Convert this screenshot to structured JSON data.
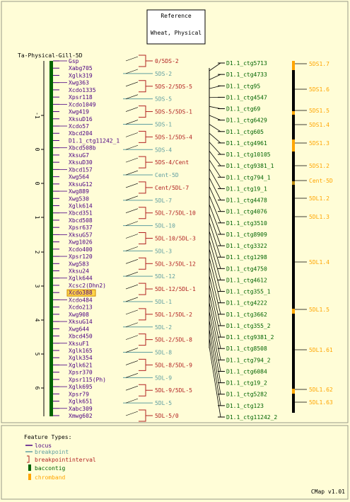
{
  "title_box": {
    "line1": "Reference",
    "line2": "Wheat, Physical"
  },
  "map_name": "Ta-Physical-Gill-5D",
  "axis_ticks": [
    "-1",
    "0",
    "0",
    "1",
    "2",
    "3",
    "4",
    "5",
    "6"
  ],
  "loci": [
    "Gsp",
    "Xabg705",
    "Xglk319",
    "Xwg363",
    "Xcdo1335",
    "Xpsr118",
    "Xcdo1049",
    "Xwg419",
    "XksuD16",
    "Xcdo57",
    "Xbcd204",
    "D1.1_ctg11242_1",
    "Xbcd508b",
    "XksuG7",
    "XksuD30",
    "Xbcd157",
    "Xwg564",
    "XksuG12",
    "Xwg889",
    "Xwg530",
    "Xglk614",
    "Xbcd351",
    "Xbcd508",
    "Xpsr637",
    "XksuG57",
    "Xwg1026",
    "Xcdo400",
    "Xpsr120",
    "Xwg583",
    "Xksu24",
    "Xglk644",
    "Xcsc2(Dhn2)",
    "Xcdo388",
    "Xcdo484",
    "Xcdo213",
    "Xwg908",
    "XksuG14",
    "Xwg644",
    "Xbcd450",
    "XksuF1",
    "Xglk165",
    "Xglk354",
    "Xglk621",
    "Xpsr370",
    "Xpsr115(Ph)",
    "Xglk695",
    "Xpsr79",
    "Xglk651",
    "Xabc309",
    "Xmwg602"
  ],
  "highlighted_locus": "Xcdo388",
  "intervals": [
    {
      "label": "0/5DS-2",
      "kind": "interval"
    },
    {
      "label": "5DS-2",
      "kind": "point"
    },
    {
      "label": "5DS-2/5DS-5",
      "kind": "interval"
    },
    {
      "label": "5DS-5",
      "kind": "point"
    },
    {
      "label": "5DS-5/5DS-1",
      "kind": "interval"
    },
    {
      "label": "5DS-1",
      "kind": "point"
    },
    {
      "label": "5DS-1/5DS-4",
      "kind": "interval"
    },
    {
      "label": "5DS-4",
      "kind": "point"
    },
    {
      "label": "5DS-4/Cent",
      "kind": "interval"
    },
    {
      "label": "Cent-5D",
      "kind": "point"
    },
    {
      "label": "Cent/5DL-7",
      "kind": "interval"
    },
    {
      "label": "5DL-7",
      "kind": "point"
    },
    {
      "label": "5DL-7/5DL-10",
      "kind": "interval"
    },
    {
      "label": "5DL-10",
      "kind": "point"
    },
    {
      "label": "5DL-10/5DL-3",
      "kind": "interval"
    },
    {
      "label": "5DL-3",
      "kind": "point"
    },
    {
      "label": "5DL-3/5DL-12",
      "kind": "interval"
    },
    {
      "label": "5DL-12",
      "kind": "point"
    },
    {
      "label": "5DL-12/5DL-1",
      "kind": "interval"
    },
    {
      "label": "5DL-1",
      "kind": "point"
    },
    {
      "label": "5DL-1/5DL-2",
      "kind": "interval"
    },
    {
      "label": "5DL-2",
      "kind": "point"
    },
    {
      "label": "5DL-2/5DL-8",
      "kind": "interval"
    },
    {
      "label": "5DL-8",
      "kind": "point"
    },
    {
      "label": "5DL-8/5DL-9",
      "kind": "interval"
    },
    {
      "label": "5DL-9",
      "kind": "point"
    },
    {
      "label": "5DL-9/5DL-5",
      "kind": "interval"
    },
    {
      "label": "5DL-5",
      "kind": "point"
    },
    {
      "label": "5DL-5/0",
      "kind": "interval"
    }
  ],
  "contigs": [
    "D1.1_ctg5713",
    "D1.1_ctg4733",
    "D1.1_ctg95",
    "D1.1_ctg4547",
    "D1.1_ctg69",
    "D1.1_ctg6429",
    "D1.1_ctg605",
    "D1.1_ctg4961",
    "D1.1_ctg10105",
    "D1.1_ctg9381_1",
    "D1.1_ctg794_1",
    "D1.1_ctg19_1",
    "D1.1_ctg4478",
    "D1.1_ctg4076",
    "D1.1_ctg3510",
    "D1.1_ctg8909",
    "D1.1_ctg3322",
    "D1.1_ctg1298",
    "D1.1_ctg4750",
    "D1.1_ctg4612",
    "D1.1_ctg355_1",
    "D1.1_ctg4222",
    "D1.1_ctg3662",
    "D1.1_ctg355_2",
    "D1.1_ctg9381_2",
    "D1.1_ctg8508",
    "D1.1_ctg794_2",
    "D1.1_ctg6084",
    "D1.1_ctg19_2",
    "D1.1_ctg5282",
    "D1.1_ctg123",
    "D1.1_ctg11242_2"
  ],
  "chromband_labels": [
    "5DS1.7",
    "5DS1.6",
    "5DS1.5",
    "5DS1.4",
    "5DS1.3",
    "5DS1.2",
    "Cent-5D",
    "5DL1.2",
    "5DL1.3",
    "5DL1.4",
    "5DL1.5",
    "5DL1.61",
    "5DL1.62",
    "5DL1.63"
  ],
  "legend": {
    "title": "Feature Types:",
    "items": [
      {
        "label": "locus",
        "color": "#4b0082"
      },
      {
        "label": "breakpoint",
        "color": "#5f9ea0"
      },
      {
        "label": "breakpointinterval",
        "color": "#b22222"
      },
      {
        "label": "baccontig",
        "color": "#006400"
      },
      {
        "label": "chromband",
        "color": "#ffa500"
      }
    ]
  },
  "footer": "CMap v1.01",
  "colors": {
    "background": "#fffdd7",
    "locus": "#4b0082",
    "breakpoint": "#5f9ea0",
    "interval": "#b22222",
    "contig": "#006400",
    "chromband": "#ffa500",
    "black": "#000000"
  }
}
